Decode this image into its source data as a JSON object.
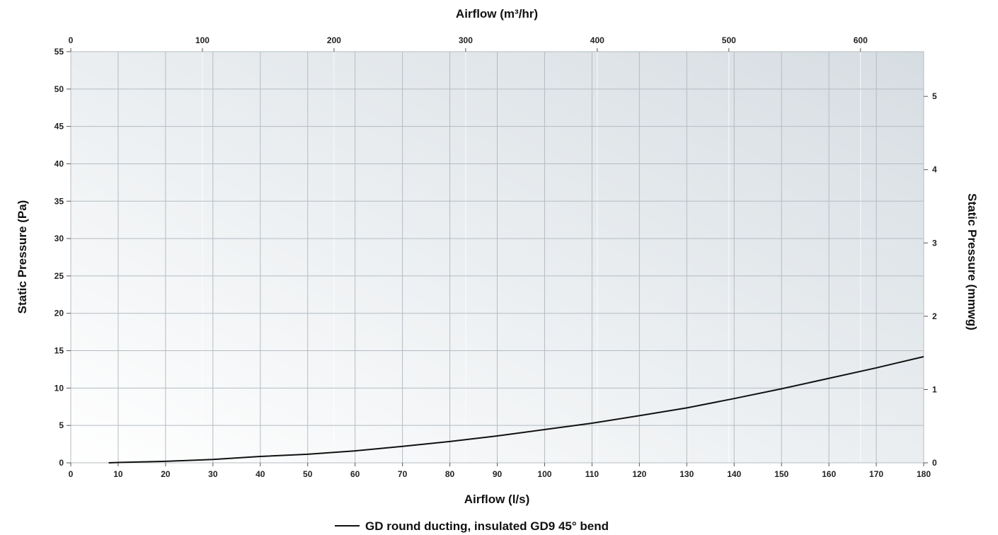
{
  "chart_data": {
    "type": "line",
    "x_bottom": {
      "label": "Airflow (l/s)",
      "range": [
        0,
        180
      ],
      "ticks": [
        0,
        10,
        20,
        30,
        40,
        50,
        60,
        70,
        80,
        90,
        100,
        110,
        120,
        130,
        140,
        150,
        160,
        170,
        180
      ]
    },
    "x_top": {
      "label": "Airflow (m³/hr)",
      "range": [
        0,
        648
      ],
      "ticks": [
        0,
        100,
        200,
        300,
        400,
        500,
        600
      ]
    },
    "y_left": {
      "label": "Static Pressure (Pa)",
      "range": [
        0,
        55
      ],
      "ticks": [
        0,
        5,
        10,
        15,
        20,
        25,
        30,
        35,
        40,
        45,
        50,
        55
      ]
    },
    "y_right": {
      "label": "Static Pressure (mmwg)",
      "range": [
        0,
        5.61
      ],
      "ticks": [
        0,
        1,
        2,
        3,
        4,
        5
      ]
    },
    "grid": true,
    "legend_position": "bottom-center",
    "series": [
      {
        "name": "GD round ducting, insulated GD9 45° bend",
        "color": "#111111",
        "x": [
          8,
          10,
          20,
          30,
          40,
          50,
          60,
          70,
          80,
          90,
          100,
          110,
          120,
          130,
          140,
          150,
          160,
          170,
          180
        ],
        "y": [
          0.0,
          0.05,
          0.2,
          0.45,
          0.85,
          1.15,
          1.6,
          2.2,
          2.85,
          3.6,
          4.45,
          5.3,
          6.3,
          7.35,
          8.6,
          9.9,
          11.3,
          12.7,
          14.2
        ]
      }
    ]
  }
}
